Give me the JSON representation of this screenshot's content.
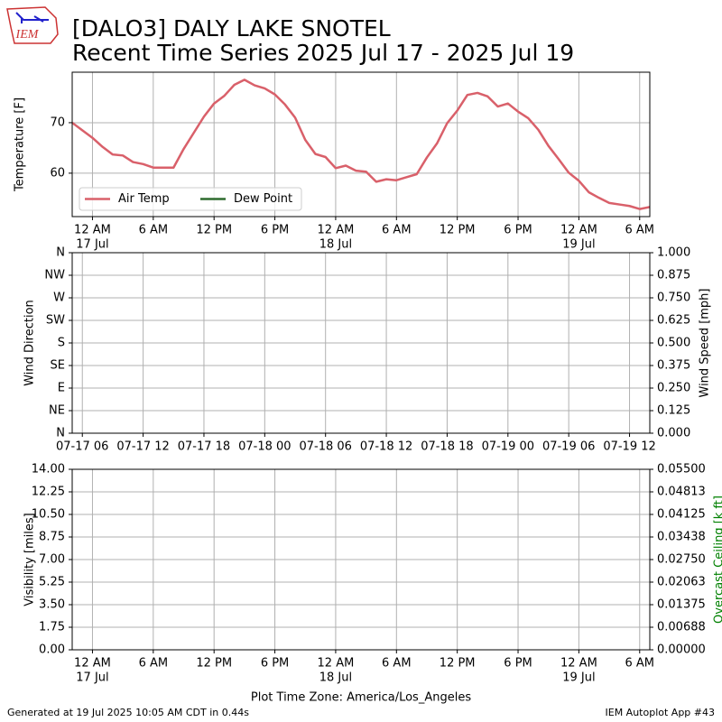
{
  "title": "[DALO3] DALY LAKE SNOTEL",
  "subtitle": "Recent Time Series 2025 Jul 17 - 2025 Jul 19",
  "logo_text": "IEM",
  "footer_left": "Generated at 19 Jul 2025 10:05 AM CDT in 0.44s",
  "footer_right": "IEM Autoplot App #43",
  "chart_data": [
    {
      "type": "line",
      "ylabel": "Temperature [F]",
      "grid": true,
      "legend": "lower left",
      "xlim": [
        "2025-07-16T22:00",
        "2025-07-19T07:00"
      ],
      "ylim": [
        51.4,
        80
      ],
      "yticks": [
        60,
        70
      ],
      "xticks": [
        {
          "value": "2025-07-17T00:00",
          "label": "12 AM",
          "date": "17 Jul"
        },
        {
          "value": "2025-07-17T06:00",
          "label": "6 AM"
        },
        {
          "value": "2025-07-17T12:00",
          "label": "12 PM"
        },
        {
          "value": "2025-07-17T18:00",
          "label": "6 PM"
        },
        {
          "value": "2025-07-18T00:00",
          "label": "12 AM",
          "date": "18 Jul"
        },
        {
          "value": "2025-07-18T06:00",
          "label": "6 AM"
        },
        {
          "value": "2025-07-18T12:00",
          "label": "12 PM"
        },
        {
          "value": "2025-07-18T18:00",
          "label": "6 PM"
        },
        {
          "value": "2025-07-19T00:00",
          "label": "12 AM",
          "date": "19 Jul"
        },
        {
          "value": "2025-07-19T06:00",
          "label": "6 AM"
        }
      ],
      "x": [
        "2025-07-16T22:00",
        "2025-07-16T23:00",
        "2025-07-17T00:00",
        "2025-07-17T01:00",
        "2025-07-17T02:00",
        "2025-07-17T03:00",
        "2025-07-17T04:00",
        "2025-07-17T05:00",
        "2025-07-17T06:00",
        "2025-07-17T07:00",
        "2025-07-17T08:00",
        "2025-07-17T09:00",
        "2025-07-17T10:00",
        "2025-07-17T11:00",
        "2025-07-17T12:00",
        "2025-07-17T13:00",
        "2025-07-17T14:00",
        "2025-07-17T15:00",
        "2025-07-17T16:00",
        "2025-07-17T17:00",
        "2025-07-17T18:00",
        "2025-07-17T19:00",
        "2025-07-17T20:00",
        "2025-07-17T21:00",
        "2025-07-17T22:00",
        "2025-07-17T23:00",
        "2025-07-18T00:00",
        "2025-07-18T01:00",
        "2025-07-18T02:00",
        "2025-07-18T03:00",
        "2025-07-18T04:00",
        "2025-07-18T05:00",
        "2025-07-18T06:00",
        "2025-07-18T07:00",
        "2025-07-18T08:00",
        "2025-07-18T09:00",
        "2025-07-18T10:00",
        "2025-07-18T11:00",
        "2025-07-18T12:00",
        "2025-07-18T13:00",
        "2025-07-18T14:00",
        "2025-07-18T15:00",
        "2025-07-18T16:00",
        "2025-07-18T17:00",
        "2025-07-18T18:00",
        "2025-07-18T19:00",
        "2025-07-18T20:00",
        "2025-07-18T21:00",
        "2025-07-18T22:00",
        "2025-07-18T23:00",
        "2025-07-19T00:00",
        "2025-07-19T01:00",
        "2025-07-19T02:00",
        "2025-07-19T03:00",
        "2025-07-19T04:00",
        "2025-07-19T05:00",
        "2025-07-19T06:00",
        "2025-07-19T07:00"
      ],
      "series": [
        {
          "name": "Air Temp",
          "color": "#d9606a",
          "values": [
            70,
            68.5,
            67,
            65.2,
            63.7,
            63.5,
            62.2,
            61.8,
            61.1,
            61.1,
            61.1,
            64.8,
            68,
            71.2,
            73.8,
            75.3,
            77.5,
            78.5,
            77.4,
            76.8,
            75.6,
            73.6,
            71,
            66.6,
            63.8,
            63.2,
            61,
            61.5,
            60.5,
            60.3,
            58.3,
            58.8,
            58.6,
            59.2,
            59.8,
            63.1,
            65.9,
            69.9,
            72.4,
            75.5,
            75.9,
            75.2,
            73.2,
            73.8,
            72.2,
            70.9,
            68.6,
            65.4,
            62.8,
            60.1,
            58.5,
            56.2,
            55.1,
            54.1,
            53.8,
            53.5,
            52.9,
            53.3
          ]
        },
        {
          "name": "Dew Point",
          "color": "#2e6b2e",
          "values": [
            null,
            null,
            null,
            null,
            null,
            null,
            null,
            null,
            null,
            null,
            null,
            null,
            null,
            null,
            null,
            null,
            null,
            null,
            null,
            null,
            null,
            null,
            null,
            null,
            null,
            null,
            null,
            null,
            null,
            null,
            null,
            null,
            null,
            null,
            null,
            null,
            null,
            null,
            null,
            null,
            null,
            null,
            null,
            null,
            null,
            null,
            null,
            null,
            null,
            null,
            null,
            null,
            null,
            null,
            null,
            null,
            null,
            null
          ]
        }
      ]
    },
    {
      "type": "line",
      "ylabel": "Wind Direction",
      "y2label": "Wind Speed [mph]",
      "grid": true,
      "xlim": [
        "2025-07-16T22:00",
        "2025-07-19T07:00"
      ],
      "ylim": [
        0,
        360
      ],
      "y2lim": [
        0,
        1
      ],
      "yticks": [
        {
          "value": 0,
          "label": "N"
        },
        {
          "value": 45,
          "label": "NE"
        },
        {
          "value": 90,
          "label": "E"
        },
        {
          "value": 135,
          "label": "SE"
        },
        {
          "value": 180,
          "label": "S"
        },
        {
          "value": 225,
          "label": "SW"
        },
        {
          "value": 270,
          "label": "W"
        },
        {
          "value": 315,
          "label": "NW"
        },
        {
          "value": 360,
          "label": "N"
        }
      ],
      "y2ticks": [
        {
          "value": 0,
          "label": "0.000"
        },
        0.125,
        {
          "value": 0.25,
          "label": "0.250"
        },
        0.375,
        {
          "value": 0.5,
          "label": "0.500"
        },
        0.625,
        {
          "value": 0.75,
          "label": "0.750"
        },
        0.875,
        {
          "value": 1,
          "label": "1.000"
        }
      ],
      "xticks": [
        {
          "value": "2025-07-16T23:00",
          "label": "07-17 06"
        },
        {
          "value": "2025-07-17T05:00",
          "label": "07-17 12"
        },
        {
          "value": "2025-07-17T11:00",
          "label": "07-17 18"
        },
        {
          "value": "2025-07-17T17:00",
          "label": "07-18 00"
        },
        {
          "value": "2025-07-17T23:00",
          "label": "07-18 06"
        },
        {
          "value": "2025-07-18T05:00",
          "label": "07-18 12"
        },
        {
          "value": "2025-07-18T11:00",
          "label": "07-18 18"
        },
        {
          "value": "2025-07-18T17:00",
          "label": "07-19 00"
        },
        {
          "value": "2025-07-18T23:00",
          "label": "07-19 06"
        },
        {
          "value": "2025-07-19T05:00",
          "label": "07-19 12"
        }
      ],
      "series": []
    },
    {
      "type": "line",
      "ylabel": "Visibility [miles]",
      "y2label": "Overcast Ceiling [k ft]",
      "y2label_color": "#008000",
      "grid": true,
      "xlabel": "Plot Time Zone: America/Los_Angeles",
      "xlim": [
        "2025-07-16T22:00",
        "2025-07-19T07:00"
      ],
      "ylim": [
        0,
        14
      ],
      "y2lim": [
        0,
        0.055
      ],
      "yticks": [
        {
          "value": 0,
          "label": "0.00"
        },
        1.75,
        {
          "value": 3.5,
          "label": "3.50"
        },
        5.25,
        {
          "value": 7,
          "label": "7.00"
        },
        8.75,
        {
          "value": 10.5,
          "label": "10.50"
        },
        12.25,
        {
          "value": 14,
          "label": "14.00"
        }
      ],
      "y2ticks": [
        {
          "value": 0,
          "label": "0.00000"
        },
        {
          "value": 0.006875,
          "label": "0.00688"
        },
        {
          "value": 0.01375,
          "label": "0.01375"
        },
        {
          "value": 0.020625,
          "label": "0.02063"
        },
        {
          "value": 0.0275,
          "label": "0.02750"
        },
        {
          "value": 0.034375,
          "label": "0.03438"
        },
        {
          "value": 0.04125,
          "label": "0.04125"
        },
        {
          "value": 0.048125,
          "label": "0.04813"
        },
        {
          "value": 0.055,
          "label": "0.05500"
        }
      ],
      "xticks": [
        {
          "value": "2025-07-17T00:00",
          "label": "12 AM",
          "date": "17 Jul"
        },
        {
          "value": "2025-07-17T06:00",
          "label": "6 AM"
        },
        {
          "value": "2025-07-17T12:00",
          "label": "12 PM"
        },
        {
          "value": "2025-07-17T18:00",
          "label": "6 PM"
        },
        {
          "value": "2025-07-18T00:00",
          "label": "12 AM",
          "date": "18 Jul"
        },
        {
          "value": "2025-07-18T06:00",
          "label": "6 AM"
        },
        {
          "value": "2025-07-18T12:00",
          "label": "12 PM"
        },
        {
          "value": "2025-07-18T18:00",
          "label": "6 PM"
        },
        {
          "value": "2025-07-19T00:00",
          "label": "12 AM",
          "date": "19 Jul"
        },
        {
          "value": "2025-07-19T06:00",
          "label": "6 AM"
        }
      ],
      "series": []
    }
  ]
}
